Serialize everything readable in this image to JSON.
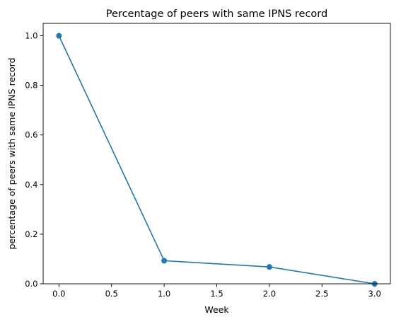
{
  "chart_data": {
    "type": "line",
    "title": "Percentage of peers with same IPNS record",
    "xlabel": "Week",
    "ylabel": "percentage of peers with same IPNS record",
    "xlim": [
      -0.15,
      3.15
    ],
    "ylim": [
      0.0,
      1.05
    ],
    "x_ticks": [
      0.0,
      0.5,
      1.0,
      1.5,
      2.0,
      2.5,
      3.0
    ],
    "x_tick_labels": [
      "0.0",
      "0.5",
      "1.0",
      "1.5",
      "2.0",
      "2.5",
      "3.0"
    ],
    "y_ticks": [
      0.0,
      0.2,
      0.4,
      0.6,
      0.8,
      1.0
    ],
    "y_tick_labels": [
      "0.0",
      "0.2",
      "0.4",
      "0.6",
      "0.8",
      "1.0"
    ],
    "grid": false,
    "legend": "none",
    "series": [
      {
        "x": [
          0,
          1,
          2,
          3
        ],
        "y": [
          1.0,
          0.093,
          0.068,
          0.0
        ],
        "color": "#1f77b4",
        "marker": "circle"
      }
    ]
  }
}
